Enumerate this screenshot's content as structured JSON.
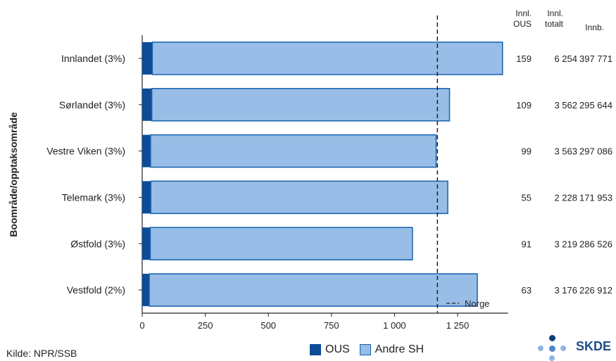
{
  "chart_data": {
    "type": "bar",
    "orientation": "horizontal",
    "stacked": true,
    "ylabel": "Boområde/opptaksområde",
    "xlim": [
      0,
      1450
    ],
    "xticks": [
      0,
      250,
      500,
      750,
      1000,
      1250
    ],
    "xtick_labels": [
      "0",
      "250",
      "500",
      "750",
      "1 000",
      "1 250"
    ],
    "categories": [
      "Innlandet (3%)",
      "Sørlandet (3%)",
      "Vestre Viken (3%)",
      "Telemark (3%)",
      "Østfold (3%)",
      "Vestfold (2%)"
    ],
    "series": [
      {
        "name": "OUS",
        "color": "#0d4c97",
        "values": [
          40,
          38,
          33,
          34,
          32,
          28
        ]
      },
      {
        "name": "Andre SH",
        "color": "#98bde6",
        "values": [
          1388,
          1180,
          1132,
          1177,
          1039,
          1300
        ]
      }
    ],
    "reference_line": {
      "label": "Norge",
      "value": 1170
    },
    "table": {
      "headers": [
        [
          "Innl.",
          "OUS"
        ],
        [
          "Innl.",
          "totalt"
        ],
        [
          "Innb."
        ]
      ],
      "rows": [
        [
          "159",
          "6 254",
          "397 771"
        ],
        [
          "109",
          "3 562",
          "295 644"
        ],
        [
          "99",
          "3 563",
          "297 086"
        ],
        [
          "55",
          "2 228",
          "171 953"
        ],
        [
          "91",
          "3 219",
          "286 526"
        ],
        [
          "63",
          "3 176",
          "226 912"
        ]
      ]
    },
    "legend_position": "bottom"
  },
  "source": "Kilde: NPR/SSB",
  "logo_text": "SKDE"
}
